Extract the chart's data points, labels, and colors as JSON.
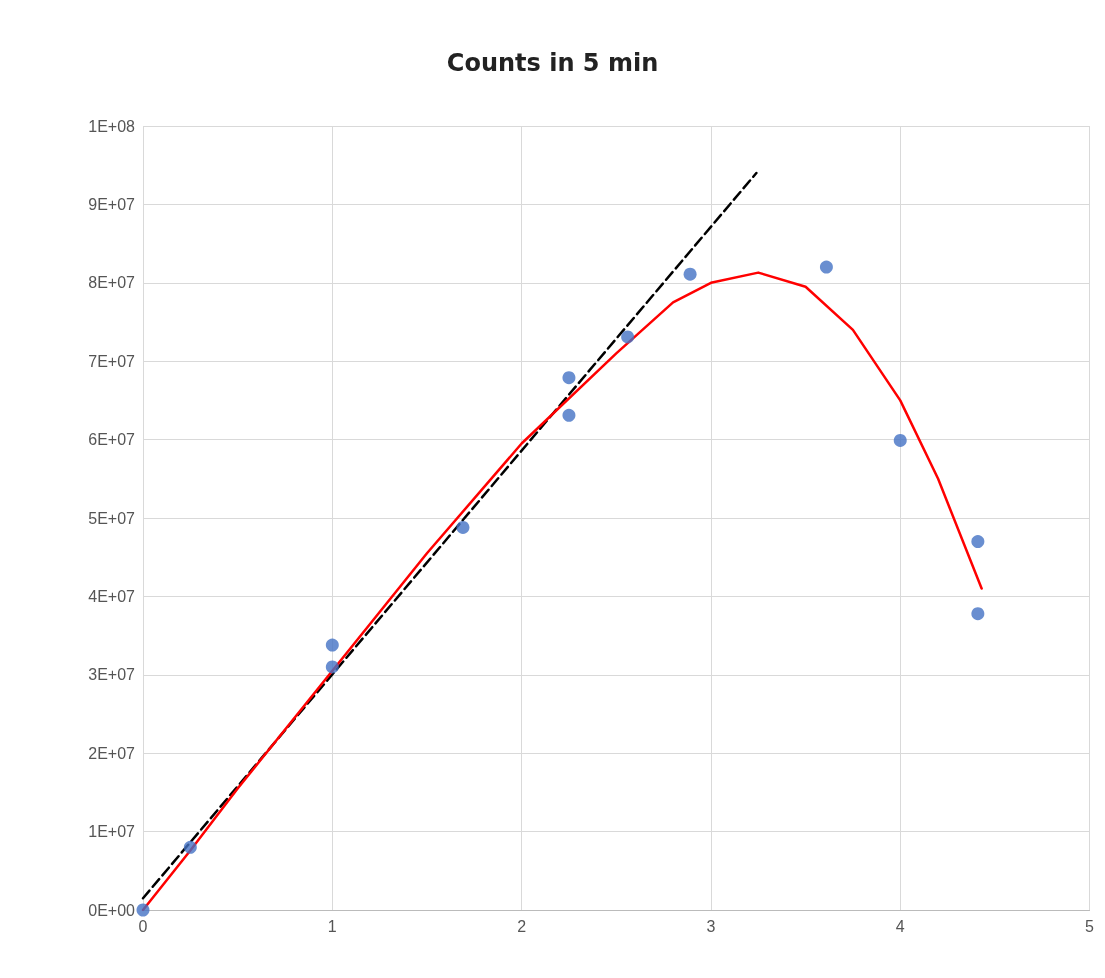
{
  "chart_data": {
    "type": "scatter",
    "title": "Counts in 5 min",
    "xlim": [
      0,
      5
    ],
    "xticks": [
      0,
      1,
      2,
      3,
      4,
      5
    ],
    "ylim": [
      0,
      100000000
    ],
    "yticks": [
      {
        "value": 0,
        "label": "0E+00"
      },
      {
        "value": 10000000,
        "label": "1E+07"
      },
      {
        "value": 20000000,
        "label": "2E+07"
      },
      {
        "value": 30000000,
        "label": "3E+07"
      },
      {
        "value": 40000000,
        "label": "4E+07"
      },
      {
        "value": 50000000,
        "label": "5E+07"
      },
      {
        "value": 60000000,
        "label": "6E+07"
      },
      {
        "value": 70000000,
        "label": "7E+07"
      },
      {
        "value": 80000000,
        "label": "8E+07"
      },
      {
        "value": 90000000,
        "label": "9E+07"
      },
      {
        "value": 100000000,
        "label": "1E+08"
      }
    ],
    "grid": true,
    "series": [
      {
        "color": "#4472c4",
        "marker": "circle",
        "x": [
          0,
          0.25,
          1,
          1,
          1.69,
          2.25,
          2.25,
          2.56,
          2.89,
          3.61,
          4,
          4.41,
          4.41
        ],
        "values": [
          0,
          8000000,
          33800000,
          31000000,
          48800000,
          67900000,
          63100000,
          73100000,
          81100000,
          82000000,
          59900000,
          47000000,
          37800000
        ]
      },
      {
        "type": "line",
        "color": "#000000",
        "marker": "none",
        "line_style": "dashed",
        "x": [
          0,
          3.24
        ],
        "values": [
          1500000,
          94000000
        ]
      },
      {
        "type": "line",
        "color": "#ff0000",
        "marker": "none",
        "line_style": "solid",
        "x": [
          0,
          0.25,
          0.5,
          1.5,
          2,
          2.5,
          2.8,
          3,
          3.25,
          3.5,
          3.75,
          4,
          4.2,
          4.43
        ],
        "values": [
          0,
          7600000,
          15500000,
          45500000,
          59500000,
          71000000,
          77500000,
          80000000,
          81300000,
          79500000,
          74000000,
          65000000,
          55000000,
          41000000
        ]
      }
    ]
  }
}
